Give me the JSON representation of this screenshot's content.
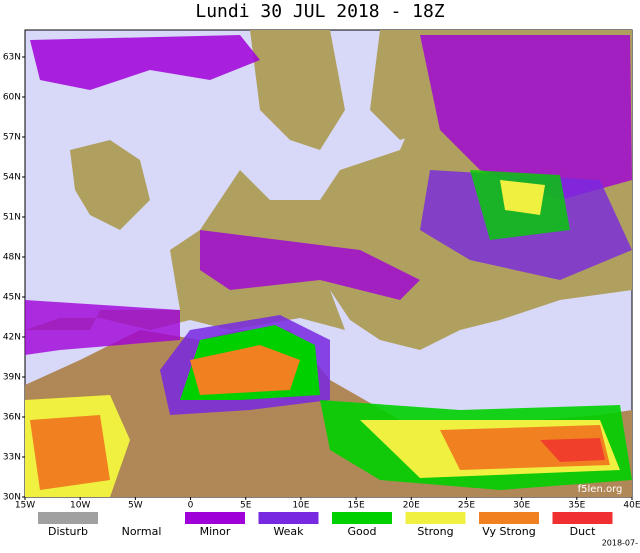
{
  "title": "Lundi 30 JUL 2018 - 18Z",
  "latitude_labels": [
    "63N",
    "60N",
    "57N",
    "54N",
    "51N",
    "48N",
    "45N",
    "42N",
    "39N",
    "36N",
    "33N",
    "30N"
  ],
  "longitude_labels": [
    "15W",
    "10W",
    "5W",
    "0",
    "5E",
    "10E",
    "15E",
    "20E",
    "25E",
    "30E",
    "35E",
    "40E"
  ],
  "legend": [
    {
      "label": "Disturb",
      "color": "#a0a0a0"
    },
    {
      "label": "Normal",
      "color": "#ffffff"
    },
    {
      "label": "Minor",
      "color": "#a000d8"
    },
    {
      "label": "Weak",
      "color": "#7828e0"
    },
    {
      "label": "Good",
      "color": "#00d000"
    },
    {
      "label": "Strong",
      "color": "#f0f040"
    },
    {
      "label": "Vy Strong",
      "color": "#f08020"
    },
    {
      "label": "Duct",
      "color": "#f03030"
    }
  ],
  "watermark": "f5len.org",
  "timestamp": "2018-07-"
}
